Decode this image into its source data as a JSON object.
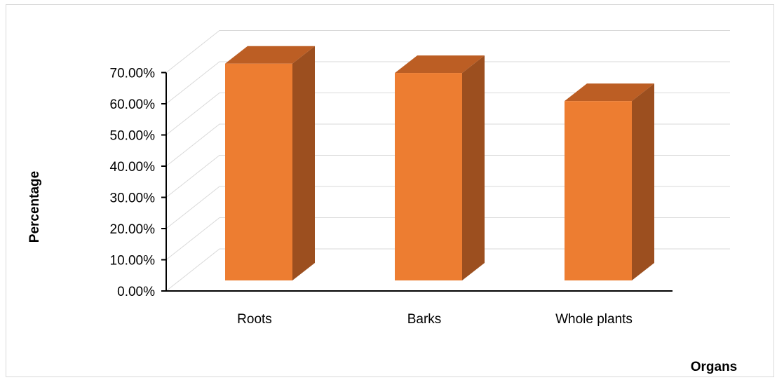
{
  "chart_data": {
    "type": "bar",
    "style": "3d-column",
    "categories": [
      "Roots",
      "Barks",
      "Whole plants"
    ],
    "values": [
      69.5,
      66.5,
      57.5
    ],
    "value_format": "percent",
    "title": "",
    "xlabel": "Organs",
    "ylabel": "Percentage",
    "ylim": [
      0,
      70
    ],
    "y_ticks": [
      "0.00%",
      "10.00%",
      "20.00%",
      "30.00%",
      "40.00%",
      "50.00%",
      "60.00%",
      "70.00%"
    ],
    "grid": true,
    "legend": "none"
  },
  "colors": {
    "bar_front": "#ED7D31",
    "bar_side": "#9C4F1F",
    "bar_top": "#BC5E24",
    "gridline": "#D9D9D9",
    "axis": "#000000"
  }
}
